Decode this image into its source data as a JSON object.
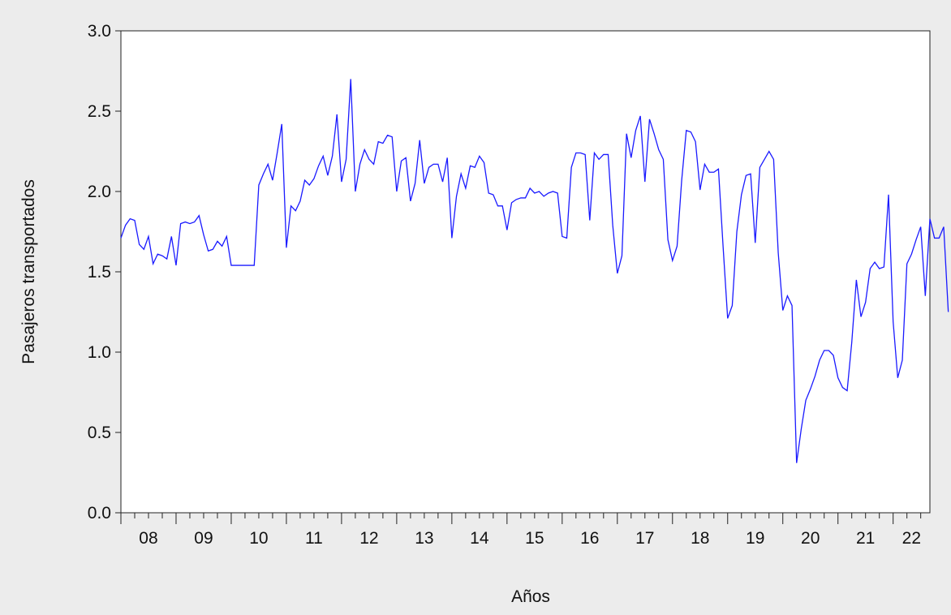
{
  "chart_data": {
    "type": "line",
    "title": "",
    "xlabel": "Años",
    "ylabel": "Pasajeros transportados",
    "ylim": [
      0,
      3
    ],
    "yticks": [
      "0.0",
      "0.5",
      "1.0",
      "1.5",
      "2.0",
      "2.5",
      "3.0"
    ],
    "xticks": [
      "08",
      "09",
      "10",
      "11",
      "12",
      "13",
      "14",
      "15",
      "16",
      "17",
      "18",
      "19",
      "20",
      "21",
      "22"
    ],
    "x_start": "2008-01",
    "x_end": "2022-08",
    "x_frequency": "monthly",
    "grid": false,
    "legend": "none",
    "line_color": "#1a1aff",
    "series": [
      {
        "values": [
          1.71,
          1.79,
          1.83,
          1.82,
          1.67,
          1.64,
          1.72,
          1.55,
          1.61,
          1.6,
          1.58,
          1.72,
          1.54,
          1.8,
          1.81,
          1.8,
          1.81,
          1.85,
          1.73,
          1.63,
          1.64,
          1.69,
          1.66,
          1.72,
          1.54,
          1.54,
          1.54,
          1.54,
          1.54,
          1.54,
          2.04,
          2.11,
          2.17,
          2.07,
          2.24,
          2.42,
          1.65,
          1.91,
          1.88,
          1.94,
          2.07,
          2.04,
          2.08,
          2.16,
          2.22,
          2.1,
          2.22,
          2.48,
          2.06,
          2.2,
          2.7,
          2.0,
          2.17,
          2.26,
          2.2,
          2.17,
          2.31,
          2.3,
          2.35,
          2.34,
          2.0,
          2.19,
          2.21,
          1.94,
          2.05,
          2.32,
          2.05,
          2.15,
          2.17,
          2.17,
          2.06,
          2.21,
          1.71,
          1.97,
          2.11,
          2.02,
          2.16,
          2.15,
          2.22,
          2.18,
          1.99,
          1.98,
          1.91,
          1.91,
          1.76,
          1.93,
          1.95,
          1.96,
          1.96,
          2.02,
          1.99,
          2.0,
          1.97,
          1.99,
          2.0,
          1.99,
          1.72,
          1.71,
          2.15,
          2.24,
          2.24,
          2.23,
          1.82,
          2.24,
          2.2,
          2.23,
          2.23,
          1.79,
          1.49,
          1.6,
          2.36,
          2.21,
          2.38,
          2.47,
          2.06,
          2.45,
          2.36,
          2.26,
          2.2,
          1.7,
          1.57,
          1.66,
          2.07,
          2.38,
          2.37,
          2.31,
          2.01,
          2.17,
          2.12,
          2.12,
          2.14,
          1.66,
          1.21,
          1.29,
          1.75,
          1.98,
          2.1,
          2.11,
          1.68,
          2.15,
          2.2,
          2.25,
          2.2,
          1.62,
          1.26,
          1.35,
          1.29,
          0.31,
          0.52,
          0.7,
          0.77,
          0.85,
          0.95,
          1.01,
          1.01,
          0.98,
          0.84,
          0.78,
          0.76,
          1.06,
          1.45,
          1.22,
          1.31,
          1.52,
          1.56,
          1.52,
          1.53,
          1.98,
          1.19,
          0.84,
          0.95,
          1.55,
          1.61,
          1.7,
          1.78,
          1.35,
          1.83,
          1.71,
          1.71,
          1.78,
          1.25
        ]
      }
    ]
  }
}
